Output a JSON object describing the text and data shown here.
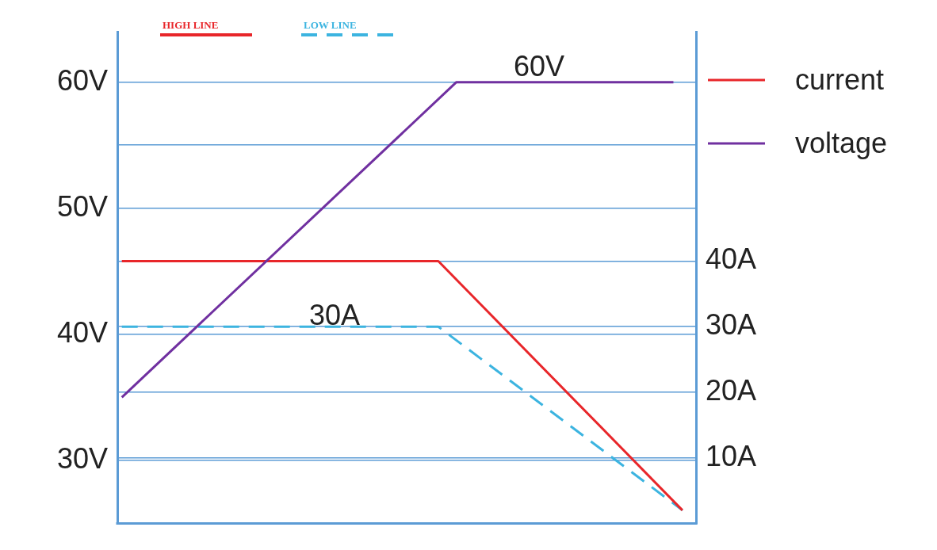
{
  "chart_data": {
    "type": "line",
    "categories": [
      null,
      null,
      null,
      null,
      null,
      null,
      null,
      null,
      null,
      null,
      null,
      null,
      null,
      null,
      null,
      null,
      null,
      null,
      null,
      null,
      null,
      null,
      null,
      null,
      null,
      null,
      null,
      null,
      null,
      null,
      null,
      null,
      null,
      null,
      null,
      null,
      null,
      null,
      null,
      null,
      null,
      null,
      null,
      null,
      null,
      null,
      null,
      null,
      null,
      null,
      null,
      null,
      null,
      null,
      null,
      null,
      null,
      null,
      null,
      null,
      null,
      null,
      null,
      null
    ],
    "series": [
      {
        "name": "voltage",
        "color": "#7030a0",
        "axis": "y",
        "values": [
          35,
          null,
          null,
          null,
          null,
          null,
          null,
          null,
          null,
          null,
          null,
          null,
          null,
          null,
          null,
          null,
          null,
          null,
          null,
          null,
          null,
          null,
          null,
          null,
          null,
          null,
          null,
          null,
          null,
          null,
          null,
          null,
          null,
          null,
          null,
          null,
          null,
          60,
          null,
          null,
          null,
          null,
          null,
          null,
          null,
          null,
          null,
          null,
          null,
          null,
          null,
          null,
          null,
          null,
          null,
          null,
          null,
          null,
          null,
          null,
          null,
          60,
          null,
          null
        ]
      },
      {
        "name": "HIGH LINE",
        "color": "#e8262a",
        "axis": "y2",
        "line_style": "solid",
        "values": [
          40,
          null,
          null,
          null,
          null,
          null,
          null,
          null,
          null,
          null,
          null,
          null,
          null,
          null,
          null,
          null,
          null,
          null,
          null,
          null,
          null,
          null,
          null,
          null,
          null,
          null,
          null,
          null,
          null,
          null,
          null,
          null,
          null,
          null,
          null,
          40,
          null,
          null,
          null,
          null,
          null,
          null,
          null,
          null,
          null,
          null,
          null,
          null,
          null,
          null,
          null,
          null,
          null,
          null,
          null,
          null,
          null,
          null,
          null,
          null,
          null,
          null,
          2,
          null
        ]
      },
      {
        "name": "LOW LINE",
        "color": "#3cb4e0",
        "axis": "y2",
        "line_style": "dashed",
        "values": [
          30,
          null,
          null,
          null,
          null,
          null,
          null,
          null,
          null,
          null,
          null,
          null,
          null,
          null,
          null,
          null,
          null,
          null,
          null,
          null,
          null,
          null,
          null,
          null,
          null,
          null,
          null,
          null,
          null,
          null,
          null,
          null,
          null,
          null,
          null,
          30,
          null,
          null,
          null,
          null,
          null,
          null,
          null,
          null,
          null,
          null,
          null,
          null,
          null,
          null,
          null,
          null,
          null,
          null,
          null,
          null,
          null,
          null,
          null,
          null,
          null,
          null,
          2,
          null
        ]
      }
    ],
    "ylim": [
      25,
      64
    ],
    "yticks": [
      {
        "value": 30,
        "label": "30V"
      },
      {
        "value": 40,
        "label": "40V"
      },
      {
        "value": 50,
        "label": "50V"
      },
      {
        "value": 55,
        "label": null
      },
      {
        "value": 60,
        "label": "60V"
      }
    ],
    "y2lim": [
      0,
      75
    ],
    "y2ticks": [
      {
        "value": 10,
        "label": "10A"
      },
      {
        "value": 20,
        "label": "20A"
      },
      {
        "value": 30,
        "label": "30A"
      },
      {
        "value": 40,
        "label": "40A"
      }
    ],
    "annotations": [
      "60V",
      "30A",
      "current"
    ],
    "grid": "y",
    "legend": "top right",
    "marker": "none"
  }
}
